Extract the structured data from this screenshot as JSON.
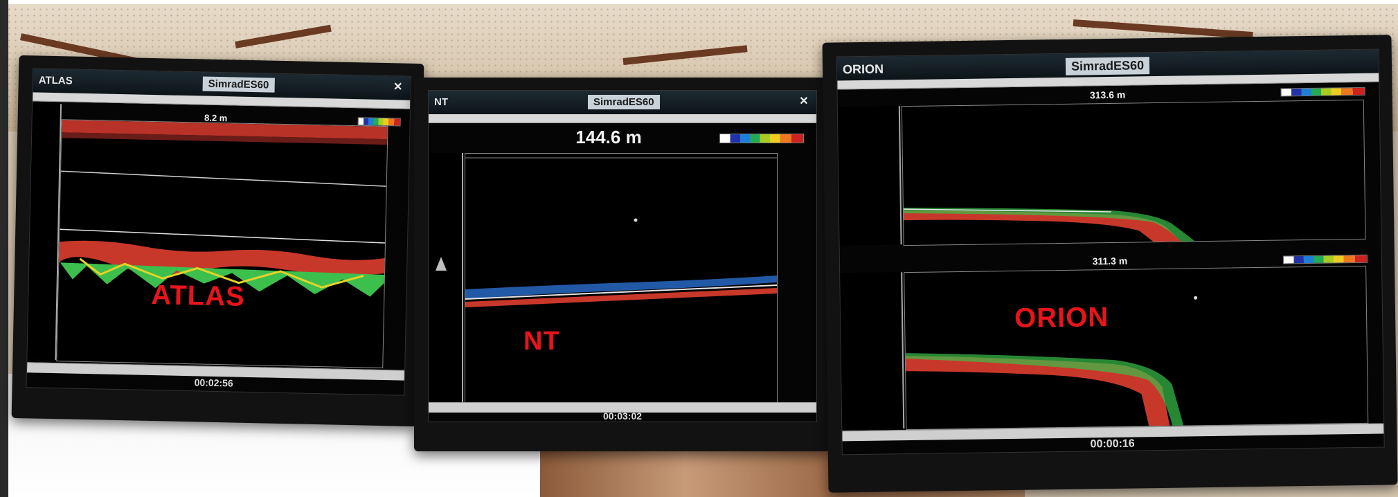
{
  "monitors": [
    {
      "app_title": "ATLAS",
      "brand": "SimradES60",
      "depth": "8.2 m",
      "clock": "00:02:56",
      "overlay_label": "ATLAS"
    },
    {
      "app_title": "NT",
      "brand": "SimradES60",
      "depth": "144.6 m",
      "clock": "00:03:02",
      "overlay_label": "NT"
    },
    {
      "app_title": "ORION",
      "brand": "SimradES60",
      "depth_top": "313.6 m",
      "depth_bottom": "311.3 m",
      "clock": "00:00:16",
      "overlay_label": "ORION"
    }
  ],
  "colors": {
    "overlay_label": "#e8141b",
    "seabed_red": "#c8382a",
    "fish_green": "#38c04a",
    "plankton_blue": "#2a6fd0"
  }
}
